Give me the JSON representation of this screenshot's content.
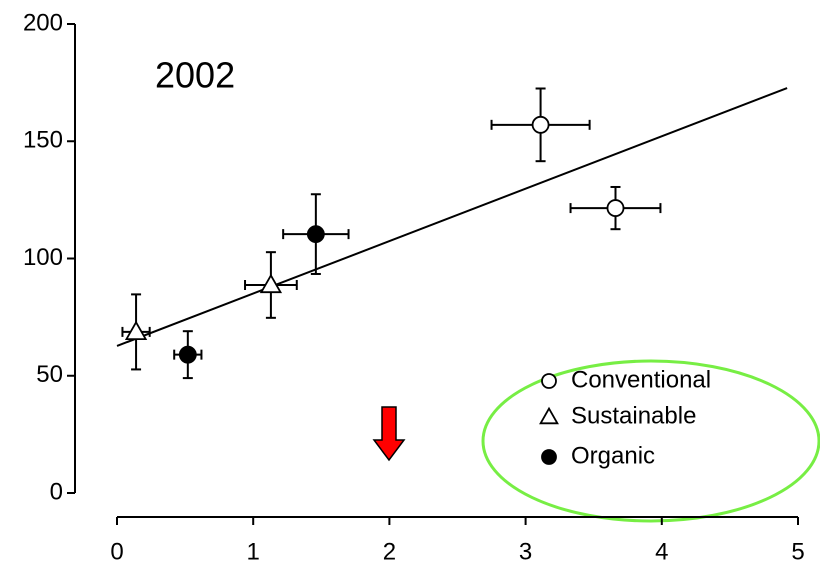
{
  "chart_data": {
    "type": "scatter",
    "title": "2002",
    "xlim": [
      0,
      5
    ],
    "xticks": [
      0,
      1,
      2,
      3,
      4,
      5
    ],
    "ylim": [
      0,
      200
    ],
    "yticks": [
      0,
      50,
      100,
      150,
      200
    ],
    "legend": "lower right",
    "series": [
      {
        "name": "Conventional",
        "marker": "circle",
        "color": "#000000",
        "fill": "#ffffff",
        "x": [
          3.11,
          3.66
        ],
        "y": [
          157,
          121.5
        ],
        "xerr": [
          0.36,
          0.33
        ],
        "yerr": [
          15.5,
          9
        ]
      },
      {
        "name": "Sustainable",
        "marker": "triangle",
        "color": "#000000",
        "fill": "#ffffff",
        "x": [
          0.14,
          1.13
        ],
        "y": [
          68.7,
          88.7
        ],
        "xerr": [
          0.1,
          0.19
        ],
        "yerr": [
          16,
          14
        ]
      },
      {
        "name": "Organic",
        "marker": "circle",
        "color": "#000000",
        "fill": "#000000",
        "x": [
          0.52,
          1.46
        ],
        "y": [
          59,
          110.4
        ],
        "xerr": [
          0.1,
          0.24
        ],
        "yerr": [
          10,
          17
        ]
      }
    ],
    "trendline": {
      "x": [
        0,
        4.92
      ],
      "y": [
        62.7,
        172.7
      ]
    }
  }
}
